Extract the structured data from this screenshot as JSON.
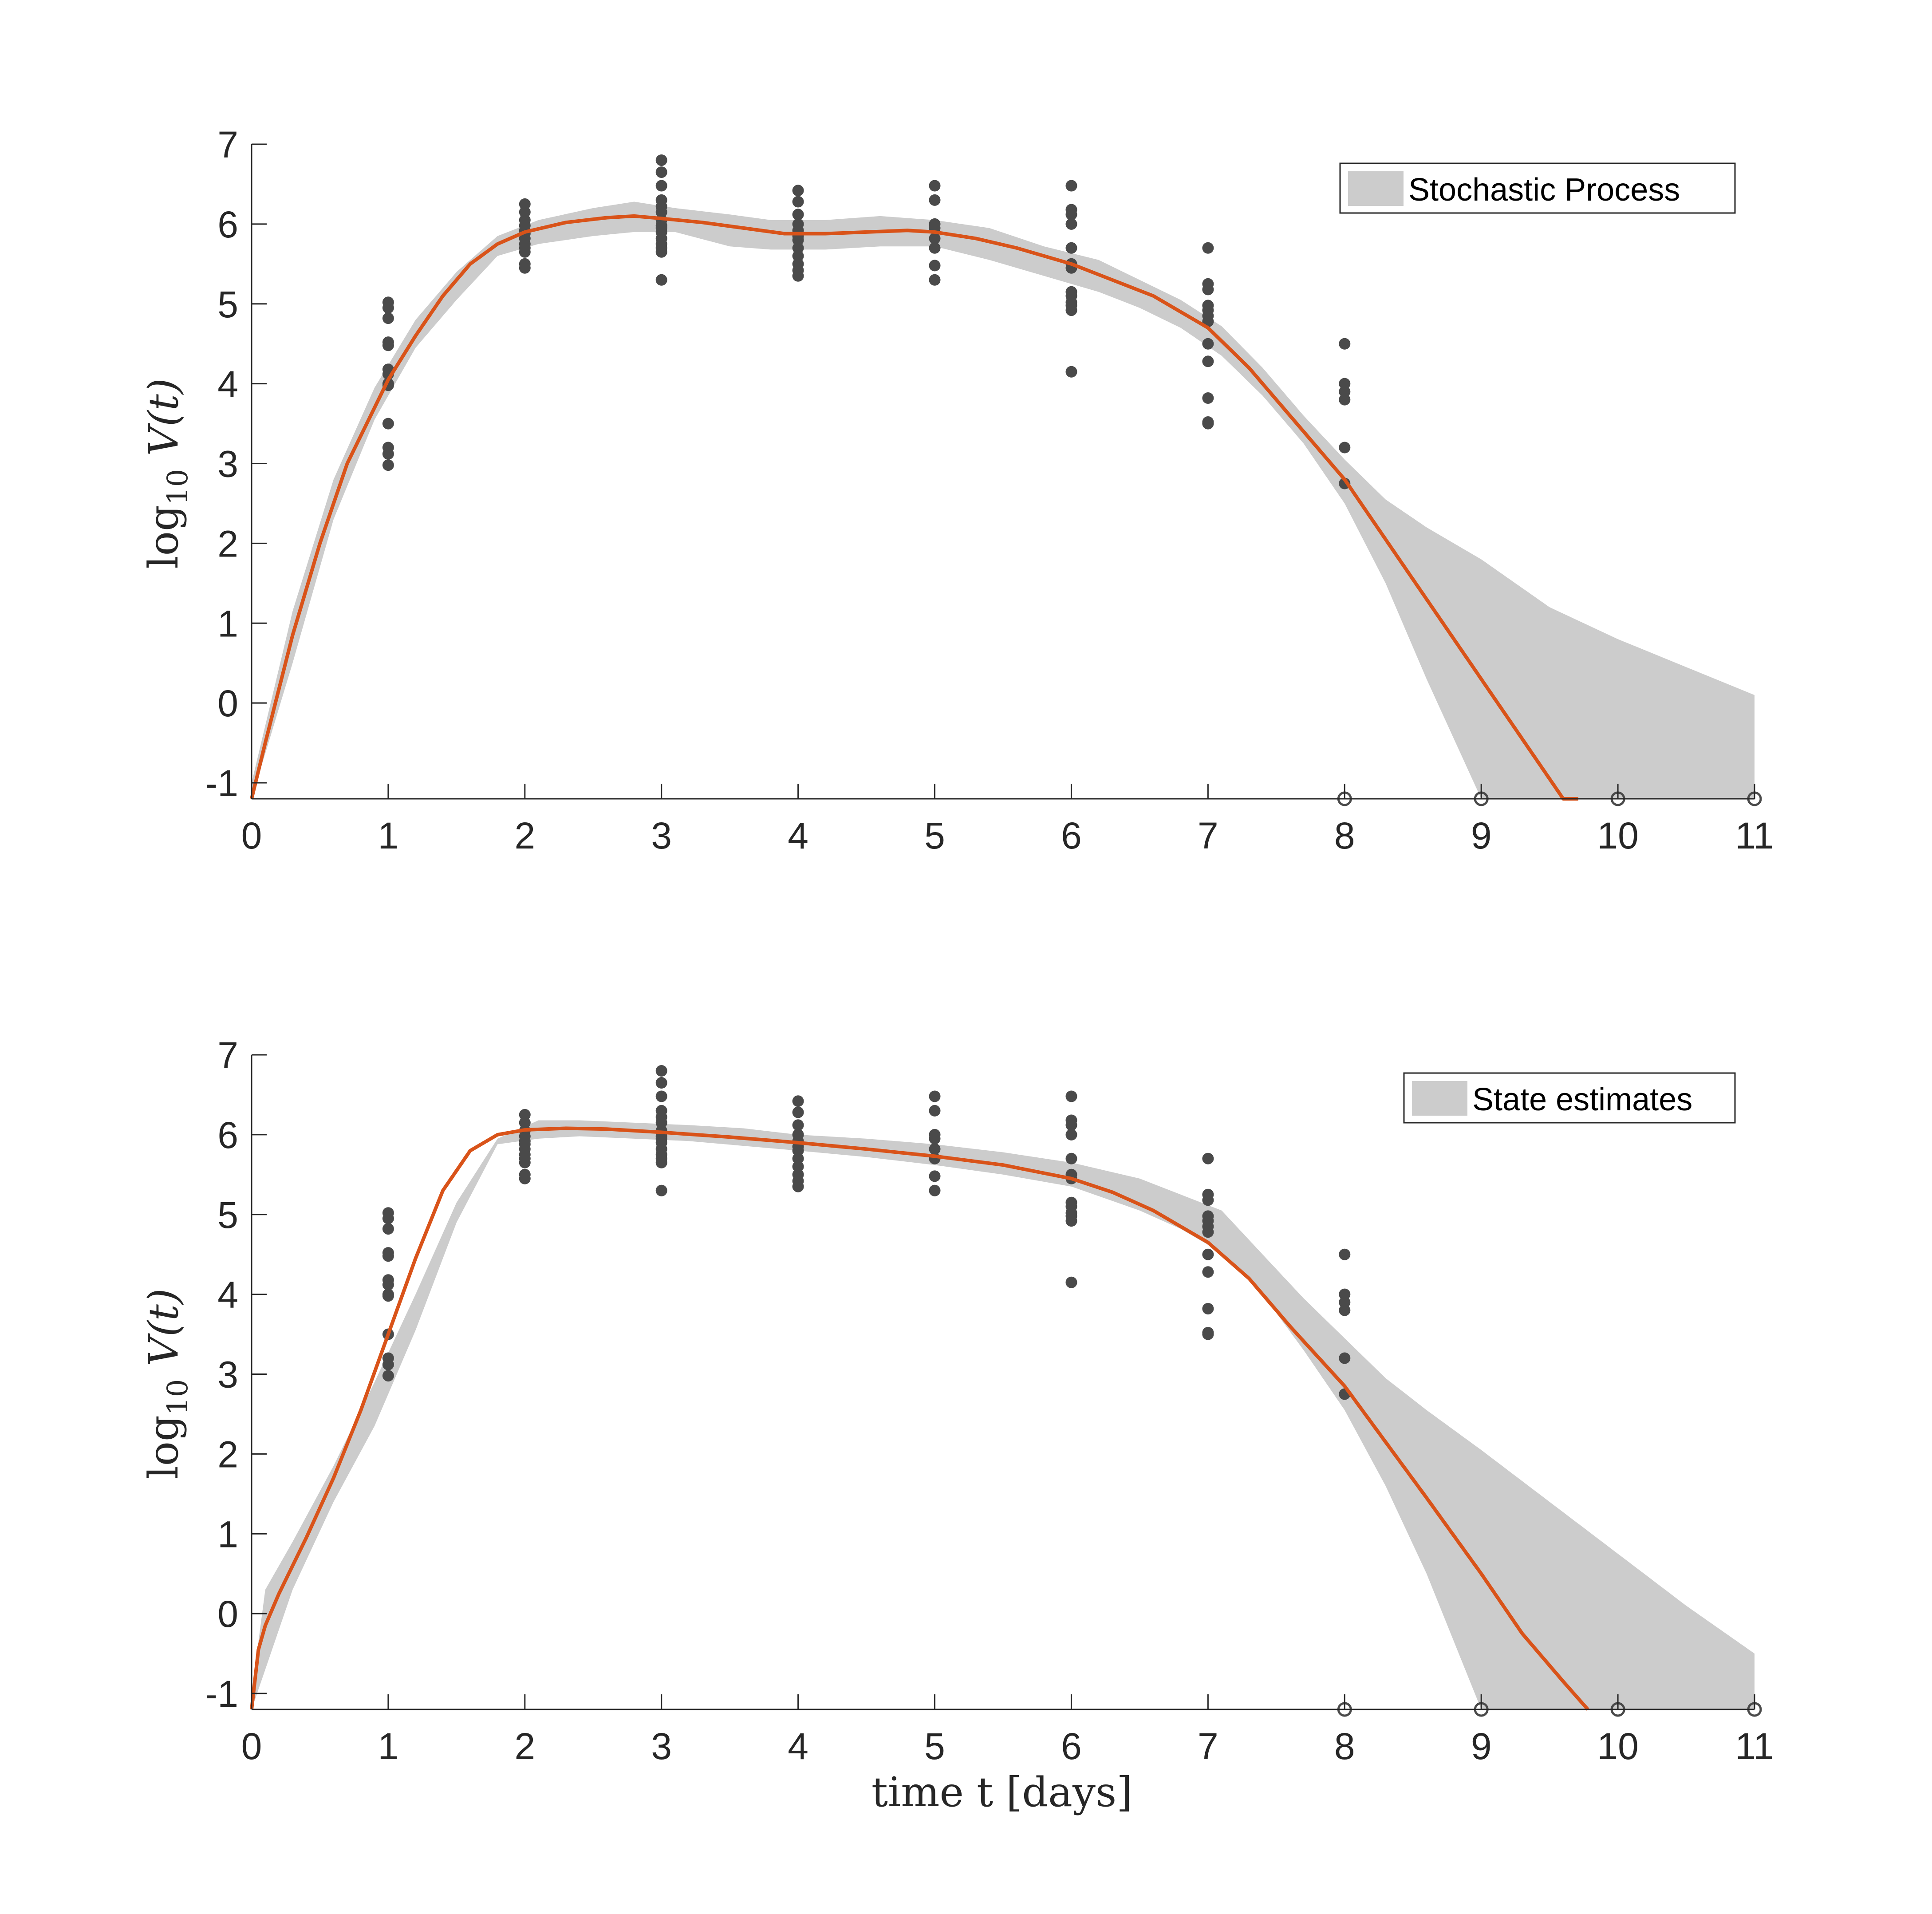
{
  "chart_data": [
    {
      "type": "line",
      "title": "",
      "legend": "Stochastic Process",
      "legend_placement": "top-right",
      "xlabel": "",
      "ylabel_main": "log",
      "ylabel_sub": "10",
      "ylabel_rest": " V(t)",
      "xlim": [
        0,
        11
      ],
      "ylim": [
        -1.2,
        7
      ],
      "xticks": [
        "0",
        "1",
        "2",
        "3",
        "4",
        "5",
        "6",
        "7",
        "8",
        "9",
        "10",
        "11"
      ],
      "yticks": [
        "-1",
        "0",
        "1",
        "2",
        "3",
        "4",
        "5",
        "6",
        "7"
      ],
      "colors": {
        "band": "#cccccc",
        "line": "#d95319",
        "points": "#4a4a4a",
        "axis": "#262626"
      },
      "mean": {
        "x": [
          0,
          0.1,
          0.3,
          0.5,
          0.7,
          0.9,
          1.0,
          1.2,
          1.4,
          1.6,
          1.8,
          2.0,
          2.3,
          2.6,
          2.8,
          3.0,
          3.3,
          3.6,
          3.9,
          4.2,
          4.5,
          4.8,
          5.0,
          5.3,
          5.6,
          6.0,
          6.3,
          6.6,
          7.0,
          7.3,
          7.6,
          8.0,
          8.3,
          8.6,
          9.0,
          9.3,
          9.6,
          9.71
        ],
        "y": [
          -1.2,
          -0.5,
          0.85,
          2.0,
          3.0,
          3.7,
          4.05,
          4.6,
          5.1,
          5.5,
          5.75,
          5.9,
          6.02,
          6.08,
          6.1,
          6.07,
          6.02,
          5.95,
          5.88,
          5.88,
          5.9,
          5.92,
          5.9,
          5.82,
          5.7,
          5.5,
          5.3,
          5.1,
          4.7,
          4.2,
          3.6,
          2.8,
          2.05,
          1.3,
          0.3,
          -0.45,
          -1.2,
          -1.2
        ]
      },
      "band_upper": {
        "x": [
          0,
          0.3,
          0.6,
          0.9,
          1.2,
          1.5,
          1.8,
          2.1,
          2.5,
          2.8,
          3.1,
          3.5,
          3.8,
          4.2,
          4.6,
          5.0,
          5.4,
          5.8,
          6.2,
          6.5,
          6.8,
          7.1,
          7.4,
          7.7,
          8.0,
          8.3,
          8.6,
          9.0,
          9.5,
          10.0,
          10.5,
          11.0
        ],
        "y": [
          -1.0,
          1.15,
          2.8,
          3.95,
          4.8,
          5.4,
          5.85,
          6.05,
          6.2,
          6.28,
          6.2,
          6.12,
          6.05,
          6.05,
          6.1,
          6.05,
          5.95,
          5.72,
          5.55,
          5.3,
          5.05,
          4.72,
          4.2,
          3.6,
          3.05,
          2.55,
          2.2,
          1.8,
          1.2,
          0.8,
          0.45,
          0.1
        ]
      },
      "band_lower": {
        "x": [
          0,
          0.3,
          0.6,
          0.9,
          1.2,
          1.5,
          1.8,
          2.1,
          2.5,
          2.8,
          3.1,
          3.5,
          3.8,
          4.2,
          4.6,
          5.0,
          5.4,
          5.8,
          6.2,
          6.5,
          6.8,
          7.1,
          7.4,
          7.7,
          8.0,
          8.3,
          8.6,
          9.0,
          9.5,
          10.0,
          10.5,
          11.0
        ],
        "y": [
          -1.2,
          0.5,
          2.3,
          3.55,
          4.45,
          5.05,
          5.6,
          5.75,
          5.85,
          5.9,
          5.9,
          5.72,
          5.68,
          5.68,
          5.72,
          5.72,
          5.55,
          5.35,
          5.15,
          4.95,
          4.7,
          4.35,
          3.85,
          3.25,
          2.5,
          1.5,
          0.3,
          -1.2,
          -1.2,
          -1.2,
          -1.2,
          -1.2
        ]
      },
      "points": {
        "x": [
          1,
          1,
          1,
          1,
          1,
          1,
          1,
          1,
          1,
          1,
          1,
          1,
          1,
          2,
          2,
          2,
          2,
          2,
          2,
          2,
          2,
          2,
          2,
          2,
          2,
          3,
          3,
          3,
          3,
          3,
          3,
          3,
          3,
          3,
          3,
          3,
          3,
          3,
          3,
          3,
          4,
          4,
          4,
          4,
          4,
          4,
          4,
          4,
          4,
          4,
          4,
          4,
          5,
          5,
          5,
          5,
          5,
          5,
          5,
          5,
          6,
          6,
          6,
          6,
          6,
          6,
          6,
          6,
          6,
          6,
          6,
          6,
          6,
          7,
          7,
          7,
          7,
          7,
          7,
          7,
          7,
          7,
          7,
          7,
          7,
          8,
          8,
          8,
          8,
          8,
          8
        ],
        "y": [
          5.02,
          4.95,
          4.82,
          4.52,
          4.48,
          4.18,
          4.12,
          4.0,
          3.98,
          3.5,
          3.2,
          3.12,
          2.98,
          6.25,
          6.15,
          6.05,
          5.98,
          5.92,
          5.88,
          5.82,
          5.75,
          5.7,
          5.65,
          5.5,
          5.45,
          6.8,
          6.65,
          6.48,
          6.3,
          6.22,
          6.15,
          6.05,
          5.98,
          5.95,
          5.9,
          5.82,
          5.75,
          5.7,
          5.65,
          5.3,
          6.42,
          6.28,
          6.12,
          6.0,
          5.92,
          5.85,
          5.8,
          5.7,
          5.6,
          5.5,
          5.42,
          5.35,
          6.48,
          6.3,
          6.0,
          5.95,
          5.82,
          5.7,
          5.48,
          5.3,
          6.48,
          6.18,
          6.12,
          6.0,
          5.7,
          5.5,
          5.45,
          5.15,
          5.1,
          5.02,
          4.98,
          4.92,
          4.15,
          5.7,
          5.25,
          5.18,
          4.98,
          4.92,
          4.85,
          4.78,
          4.5,
          4.28,
          3.82,
          3.52,
          3.5,
          4.5,
          4.0,
          3.9,
          3.8,
          3.2,
          2.75
        ]
      },
      "censored": {
        "x": [
          8,
          9,
          10,
          11
        ],
        "y": [
          -1.2,
          -1.2,
          -1.2,
          -1.2
        ]
      }
    },
    {
      "type": "line",
      "title": "",
      "legend": "State estimates",
      "legend_placement": "top-right",
      "xlabel": "time t [days]",
      "ylabel_main": "log",
      "ylabel_sub": "10",
      "ylabel_rest": " V(t)",
      "xlim": [
        0,
        11
      ],
      "ylim": [
        -1.2,
        7
      ],
      "xticks": [
        "0",
        "1",
        "2",
        "3",
        "4",
        "5",
        "6",
        "7",
        "8",
        "9",
        "10",
        "11"
      ],
      "yticks": [
        "-1",
        "0",
        "1",
        "2",
        "3",
        "4",
        "5",
        "6",
        "7"
      ],
      "colors": {
        "band": "#cccccc",
        "line": "#d95319",
        "points": "#4a4a4a",
        "axis": "#262626"
      },
      "mean": {
        "x": [
          0,
          0.05,
          0.1,
          0.2,
          0.4,
          0.6,
          0.8,
          1.0,
          1.2,
          1.4,
          1.6,
          1.8,
          2.0,
          2.3,
          2.6,
          3.0,
          3.5,
          4.0,
          4.5,
          5.0,
          5.5,
          6.0,
          6.3,
          6.6,
          7.0,
          7.3,
          7.6,
          8.0,
          8.3,
          8.6,
          9.0,
          9.3,
          9.6,
          9.78
        ],
        "y": [
          -1.2,
          -0.45,
          -0.15,
          0.25,
          0.95,
          1.7,
          2.55,
          3.5,
          4.45,
          5.3,
          5.8,
          6.0,
          6.06,
          6.08,
          6.07,
          6.03,
          5.97,
          5.9,
          5.82,
          5.73,
          5.62,
          5.45,
          5.28,
          5.05,
          4.65,
          4.2,
          3.6,
          2.85,
          2.15,
          1.45,
          0.5,
          -0.25,
          -0.85,
          -1.2
        ]
      },
      "band_upper": {
        "x": [
          0,
          0.1,
          0.3,
          0.6,
          0.9,
          1.2,
          1.5,
          1.8,
          2.1,
          2.4,
          2.8,
          3.2,
          3.6,
          4.0,
          4.5,
          5.0,
          5.5,
          6.0,
          6.5,
          6.8,
          7.1,
          7.4,
          7.7,
          8.0,
          8.3,
          8.6,
          9.0,
          9.5,
          10.0,
          10.5,
          11.0
        ],
        "y": [
          -1.0,
          0.3,
          0.9,
          1.85,
          2.9,
          4.0,
          5.15,
          5.95,
          6.18,
          6.18,
          6.15,
          6.12,
          6.08,
          6.0,
          5.95,
          5.88,
          5.78,
          5.65,
          5.45,
          5.25,
          5.05,
          4.5,
          3.95,
          3.45,
          2.95,
          2.55,
          2.05,
          1.4,
          0.75,
          0.1,
          -0.5
        ]
      },
      "band_lower": {
        "x": [
          0,
          0.1,
          0.3,
          0.6,
          0.9,
          1.2,
          1.5,
          1.8,
          2.1,
          2.4,
          2.8,
          3.2,
          3.6,
          4.0,
          4.5,
          5.0,
          5.5,
          6.0,
          6.5,
          6.8,
          7.1,
          7.4,
          7.7,
          8.0,
          8.3,
          8.6,
          9.0,
          9.5,
          10.0,
          10.5,
          11.0
        ],
        "y": [
          -1.2,
          -0.7,
          0.3,
          1.4,
          2.35,
          3.55,
          4.9,
          5.88,
          5.95,
          5.98,
          5.95,
          5.92,
          5.86,
          5.8,
          5.72,
          5.62,
          5.5,
          5.35,
          5.05,
          4.82,
          4.52,
          4.0,
          3.3,
          2.55,
          1.6,
          0.5,
          -1.2,
          -1.2,
          -1.2,
          -1.2,
          -1.2
        ]
      },
      "points": {
        "x": [
          1,
          1,
          1,
          1,
          1,
          1,
          1,
          1,
          1,
          1,
          1,
          1,
          1,
          2,
          2,
          2,
          2,
          2,
          2,
          2,
          2,
          2,
          2,
          2,
          2,
          3,
          3,
          3,
          3,
          3,
          3,
          3,
          3,
          3,
          3,
          3,
          3,
          3,
          3,
          3,
          4,
          4,
          4,
          4,
          4,
          4,
          4,
          4,
          4,
          4,
          4,
          4,
          5,
          5,
          5,
          5,
          5,
          5,
          5,
          5,
          6,
          6,
          6,
          6,
          6,
          6,
          6,
          6,
          6,
          6,
          6,
          6,
          6,
          7,
          7,
          7,
          7,
          7,
          7,
          7,
          7,
          7,
          7,
          7,
          7,
          8,
          8,
          8,
          8,
          8,
          8
        ],
        "y": [
          5.02,
          4.95,
          4.82,
          4.52,
          4.48,
          4.18,
          4.12,
          4.0,
          3.98,
          3.5,
          3.2,
          3.12,
          2.98,
          6.25,
          6.15,
          6.05,
          5.98,
          5.92,
          5.88,
          5.82,
          5.75,
          5.7,
          5.65,
          5.5,
          5.45,
          6.8,
          6.65,
          6.48,
          6.3,
          6.22,
          6.15,
          6.05,
          5.98,
          5.95,
          5.9,
          5.82,
          5.75,
          5.7,
          5.65,
          5.3,
          6.42,
          6.28,
          6.12,
          6.0,
          5.92,
          5.85,
          5.8,
          5.7,
          5.6,
          5.5,
          5.42,
          5.35,
          6.48,
          6.3,
          6.0,
          5.95,
          5.82,
          5.7,
          5.48,
          5.3,
          6.48,
          6.18,
          6.12,
          6.0,
          5.7,
          5.5,
          5.45,
          5.15,
          5.1,
          5.02,
          4.98,
          4.92,
          4.15,
          5.7,
          5.25,
          5.18,
          4.98,
          4.92,
          4.85,
          4.78,
          4.5,
          4.28,
          3.82,
          3.52,
          3.5,
          4.5,
          4.0,
          3.9,
          3.8,
          3.2,
          2.75
        ]
      },
      "censored": {
        "x": [
          8,
          9,
          10,
          11
        ],
        "y": [
          -1.2,
          -1.2,
          -1.2,
          -1.2
        ]
      }
    }
  ]
}
